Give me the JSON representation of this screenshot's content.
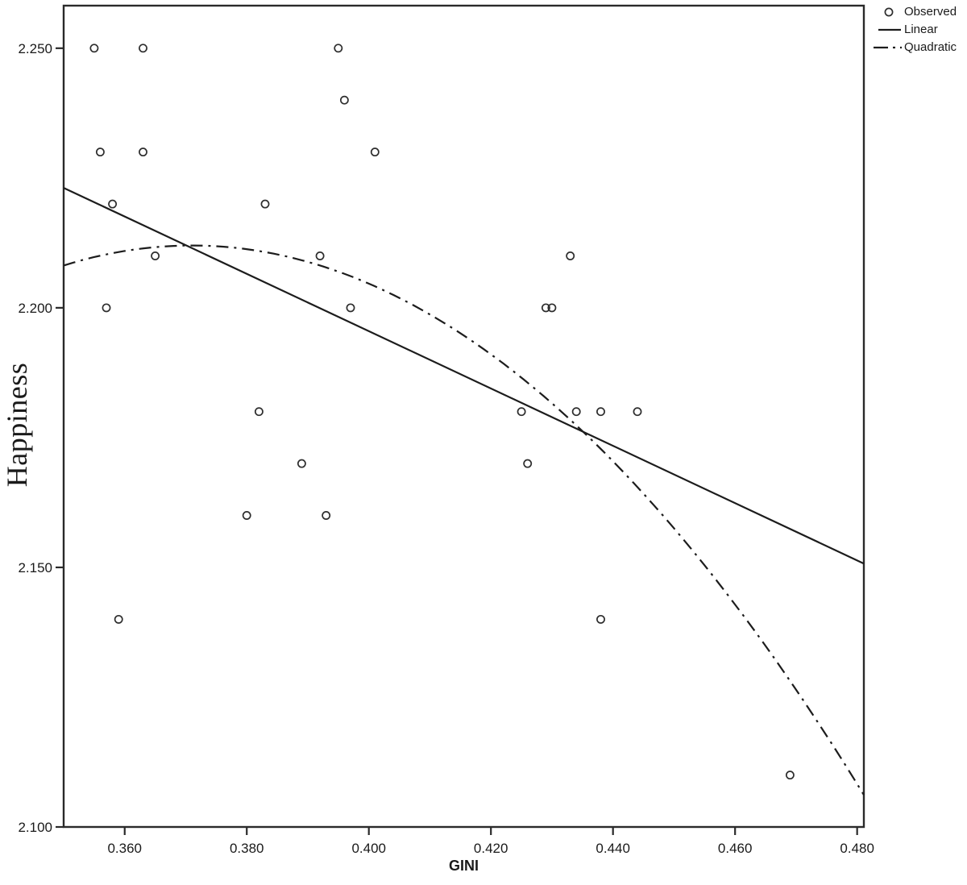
{
  "figure": {
    "background": "#ffffff",
    "frame_color": "#2a2a2a",
    "line_color": "#1c1c1c",
    "marker_color": "#2e2e2e",
    "text_color": "#1a1a1a"
  },
  "chart_data": {
    "type": "scatter",
    "title": "",
    "xlabel": "GINI",
    "ylabel": "Happiness",
    "xlim": [
      0.35,
      0.4811
    ],
    "ylim": [
      2.1,
      2.2582
    ],
    "grid": false,
    "x_ticks": {
      "values": [
        0.36,
        0.38,
        0.4,
        0.42,
        0.44,
        0.46,
        0.48
      ],
      "labels": [
        "0.360",
        "0.380",
        "0.400",
        "0.420",
        "0.440",
        "0.460",
        "0.480"
      ]
    },
    "y_ticks": {
      "values": [
        2.1,
        2.15,
        2.2,
        2.25
      ],
      "labels": [
        "2.100",
        "2.150",
        "2.200",
        "2.250"
      ]
    },
    "legend": {
      "position": "top-right",
      "entries": [
        {
          "label": "Observed",
          "glyph": "circle-marker"
        },
        {
          "label": "Linear",
          "glyph": "solid-line"
        },
        {
          "label": "Quadratic",
          "glyph": "dash-dot-line"
        }
      ]
    },
    "series": [
      {
        "name": "Observed",
        "type": "scatter",
        "points": [
          [
            0.355,
            2.25
          ],
          [
            0.363,
            2.25
          ],
          [
            0.395,
            2.25
          ],
          [
            0.396,
            2.24
          ],
          [
            0.356,
            2.23
          ],
          [
            0.363,
            2.23
          ],
          [
            0.401,
            2.23
          ],
          [
            0.358,
            2.22
          ],
          [
            0.383,
            2.22
          ],
          [
            0.365,
            2.21
          ],
          [
            0.392,
            2.21
          ],
          [
            0.433,
            2.21
          ],
          [
            0.357,
            2.2
          ],
          [
            0.397,
            2.2
          ],
          [
            0.429,
            2.2
          ],
          [
            0.43,
            2.2
          ],
          [
            0.382,
            2.18
          ],
          [
            0.425,
            2.18
          ],
          [
            0.434,
            2.18
          ],
          [
            0.438,
            2.18
          ],
          [
            0.444,
            2.18
          ],
          [
            0.389,
            2.17
          ],
          [
            0.426,
            2.17
          ],
          [
            0.38,
            2.16
          ],
          [
            0.393,
            2.16
          ],
          [
            0.359,
            2.14
          ],
          [
            0.438,
            2.14
          ],
          [
            0.469,
            2.11
          ]
        ]
      },
      {
        "name": "Linear",
        "type": "line",
        "style": "solid",
        "fit": {
          "intercept": 2.4163,
          "slope": -0.552
        }
      },
      {
        "name": "Quadratic",
        "type": "line",
        "style": "dash-dot",
        "fit": {
          "vertex_x": 0.371,
          "vertex_y": 2.212,
          "a": -8.73
        }
      }
    ]
  }
}
